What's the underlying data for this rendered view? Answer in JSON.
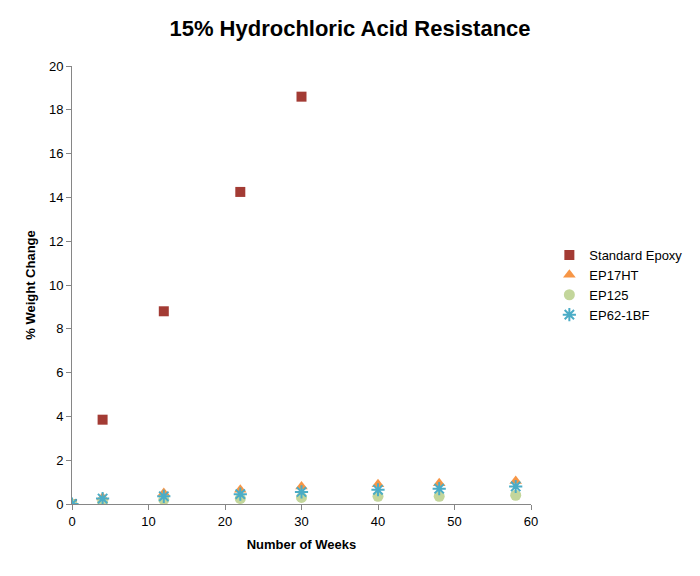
{
  "chart_data": {
    "type": "scatter",
    "title": "15% Hydrochloric Acid Resistance",
    "x_label": "Number of Weeks",
    "y_label": "% Weight Change",
    "x": [
      0,
      4,
      12,
      22,
      30,
      40,
      48,
      58
    ],
    "series": [
      {
        "name": "Standard Epoxy",
        "color": "#a33b34",
        "marker": "square",
        "values": [
          0,
          3.85,
          8.8,
          14.25,
          18.6,
          null,
          null,
          null
        ]
      },
      {
        "name": "EP17HT",
        "color": "#f79646",
        "marker": "triangle",
        "values": [
          0,
          0.3,
          0.5,
          0.65,
          0.8,
          0.9,
          0.95,
          1.05
        ]
      },
      {
        "name": "EP125",
        "color": "#c3d69b",
        "marker": "circle",
        "values": [
          0,
          0.1,
          0.2,
          0.25,
          0.3,
          0.35,
          0.35,
          0.4
        ]
      },
      {
        "name": "EP62-1BF",
        "color": "#4bacc6",
        "marker": "asterisk",
        "values": [
          0,
          0.25,
          0.35,
          0.45,
          0.55,
          0.65,
          0.7,
          0.8
        ]
      }
    ],
    "xlim": [
      0,
      60
    ],
    "xticks": [
      0,
      10,
      20,
      30,
      40,
      50,
      60
    ],
    "ylim": [
      0,
      20
    ],
    "yticks": [
      0,
      2,
      4,
      6,
      8,
      10,
      12,
      14,
      16,
      18,
      20
    ],
    "grid": false,
    "legend": "right"
  }
}
